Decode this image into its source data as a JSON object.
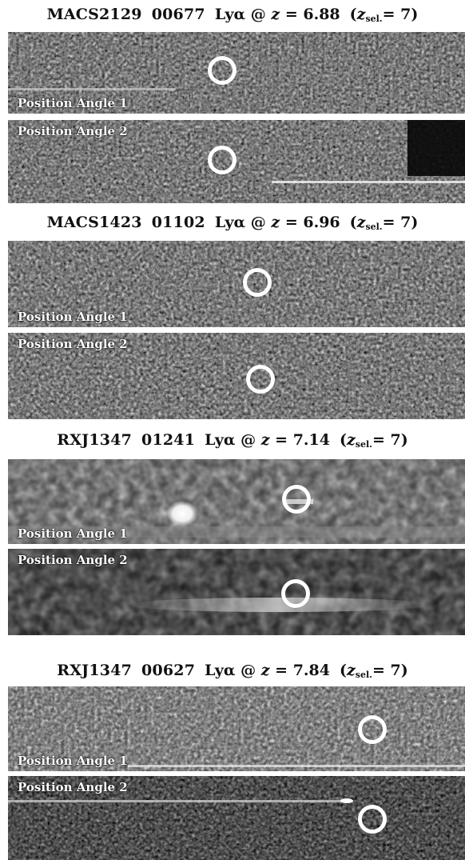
{
  "figure": {
    "objects": [
      {
        "field": "MACS2129",
        "id": "00677",
        "line": "Lyα @",
        "z_symbol": "z",
        "z_value": "= 6.88",
        "z_sel_label": "z",
        "z_sel_sub": "sel.",
        "z_sel_value": "= 7",
        "panels": [
          {
            "label": "Position Angle 1"
          },
          {
            "label": "Position Angle 2"
          }
        ]
      },
      {
        "field": "MACS1423",
        "id": "01102",
        "line": "Lyα @",
        "z_symbol": "z",
        "z_value": "= 6.96",
        "z_sel_label": "z",
        "z_sel_sub": "sel.",
        "z_sel_value": "= 7",
        "panels": [
          {
            "label": "Position Angle 1"
          },
          {
            "label": "Position Angle 2"
          }
        ]
      },
      {
        "field": "RXJ1347",
        "id": "01241",
        "line": "Lyα @",
        "z_symbol": "z",
        "z_value": "= 7.14",
        "z_sel_label": "z",
        "z_sel_sub": "sel.",
        "z_sel_value": "= 7",
        "panels": [
          {
            "label": "Position Angle 1"
          },
          {
            "label": "Position Angle 2"
          }
        ]
      },
      {
        "field": "RXJ1347",
        "id": "00627",
        "line": "Lyα @",
        "z_symbol": "z",
        "z_value": "= 7.84",
        "z_sel_label": "z",
        "z_sel_sub": "sel.",
        "z_sel_value": "= 7",
        "panels": [
          {
            "label": "Position Angle 1"
          },
          {
            "label": "Position Angle 2"
          }
        ]
      }
    ]
  }
}
